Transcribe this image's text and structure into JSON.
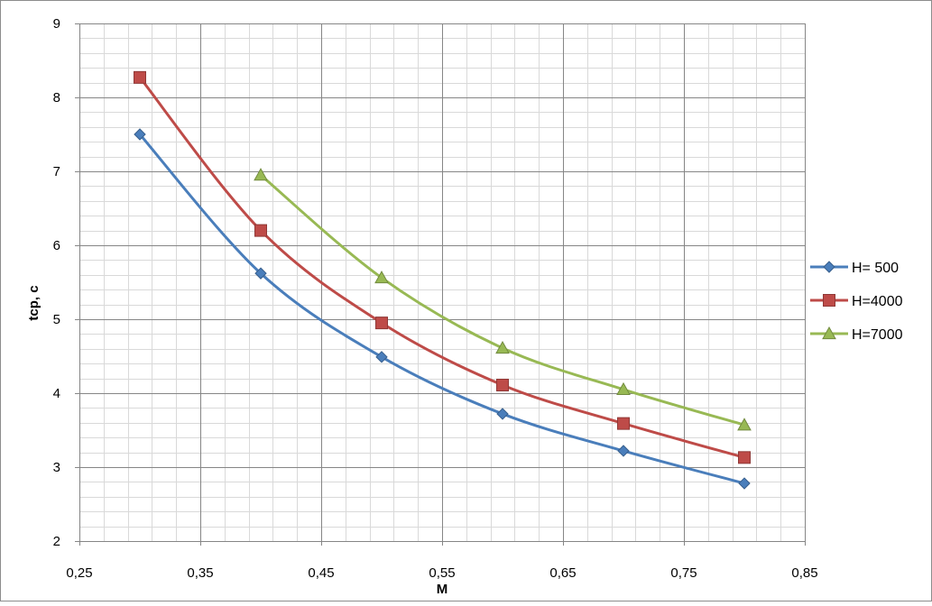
{
  "chart_data": {
    "type": "line",
    "title": "",
    "xlabel": "M",
    "ylabel": "tср, с",
    "xlim": [
      0.25,
      0.85
    ],
    "ylim": [
      2,
      9
    ],
    "x_major_step": 0.1,
    "x_minor_step": 0.02,
    "y_major_step": 1,
    "y_minor_step": 0.2,
    "grid": true,
    "legend_position": "right",
    "x_tick_labels": [
      "0,25",
      "0,35",
      "0,45",
      "0,55",
      "0,65",
      "0,75",
      "0,85"
    ],
    "y_tick_labels": [
      "2",
      "3",
      "4",
      "5",
      "6",
      "7",
      "8",
      "9"
    ],
    "series": [
      {
        "name": "H= 500",
        "color": "#4A7EBB",
        "marker": "diamond",
        "x": [
          0.3,
          0.4,
          0.5,
          0.6,
          0.7,
          0.8
        ],
        "y": [
          7.5,
          5.62,
          4.49,
          3.72,
          3.22,
          2.78
        ]
      },
      {
        "name": "H=4000",
        "color": "#BE4B48",
        "marker": "square",
        "x": [
          0.3,
          0.4,
          0.5,
          0.6,
          0.7,
          0.8
        ],
        "y": [
          8.27,
          6.2,
          4.95,
          4.11,
          3.59,
          3.13
        ]
      },
      {
        "name": "H=7000",
        "color": "#98B954",
        "marker": "triangle",
        "x": [
          0.4,
          0.5,
          0.6,
          0.7,
          0.8
        ],
        "y": [
          6.95,
          5.56,
          4.61,
          4.05,
          3.57
        ]
      }
    ]
  }
}
